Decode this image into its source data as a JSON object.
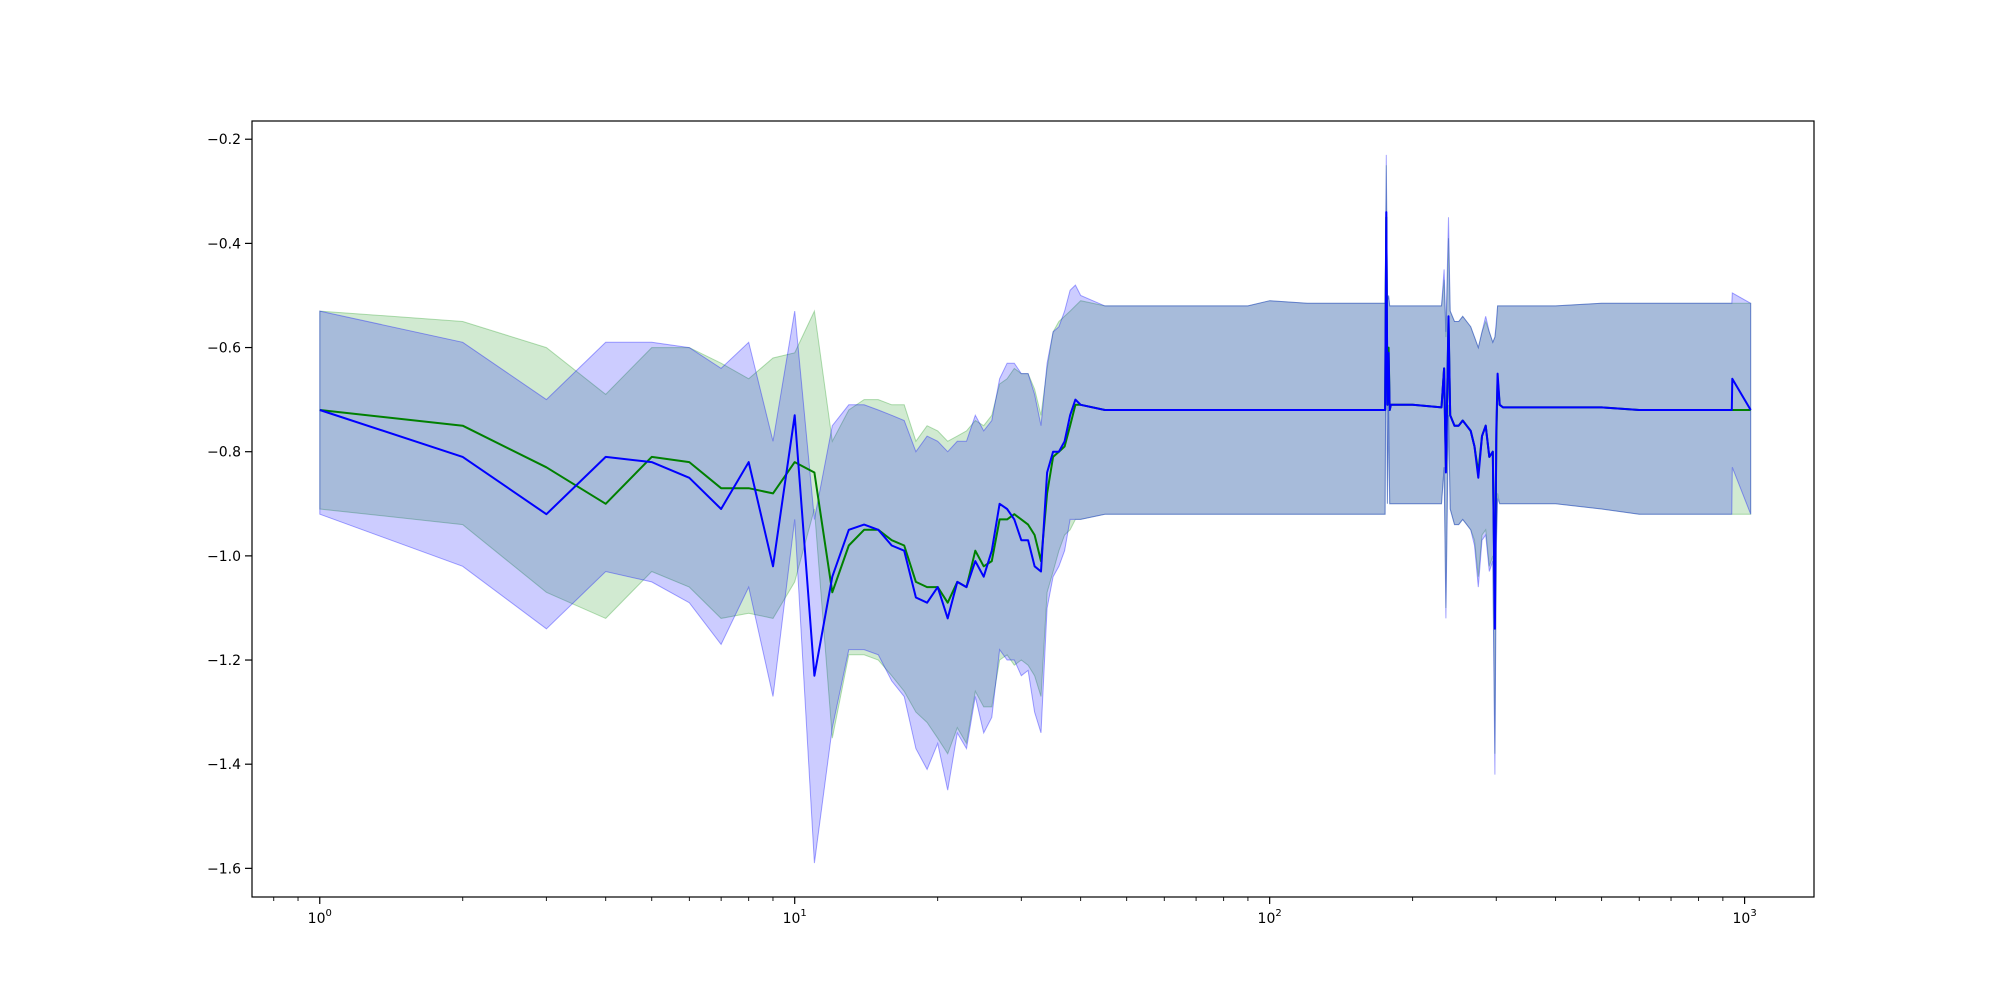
{
  "chart_data": {
    "type": "line",
    "title": "",
    "xlabel": "",
    "ylabel": "",
    "x_scale": "log",
    "xlim": [
      0.72,
      1400
    ],
    "ylim": [
      -1.655,
      -0.165
    ],
    "grid": false,
    "x_tick_values": [
      1,
      10,
      100,
      1000
    ],
    "x_tick_labels": [
      {
        "base": "10",
        "exp": "0"
      },
      {
        "base": "10",
        "exp": "1"
      },
      {
        "base": "10",
        "exp": "2"
      },
      {
        "base": "10",
        "exp": "3"
      }
    ],
    "y_ticks": [
      -1.6,
      -1.4,
      -1.2,
      -1.0,
      -0.8,
      -0.6,
      -0.4,
      -0.2
    ],
    "y_tick_labels": [
      "−1.6",
      "−1.4",
      "−1.2",
      "−1.0",
      "−0.8",
      "−0.6",
      "−0.4",
      "−0.2"
    ],
    "series": [
      {
        "color": "#008000",
        "band_color": "#2ca02c",
        "band_opacity": 0.22,
        "x": [
          1,
          2,
          3,
          4,
          5,
          6,
          7,
          8,
          9,
          10,
          11,
          12,
          13,
          14,
          15,
          16,
          17,
          18,
          19,
          20,
          21,
          22,
          23,
          24,
          25,
          26,
          27,
          28,
          29,
          30,
          31,
          32,
          33,
          34,
          35,
          36,
          37,
          38,
          39,
          40,
          45,
          50,
          60,
          70,
          80,
          90,
          100,
          120,
          150,
          175,
          176,
          177,
          178,
          179,
          180,
          185,
          200,
          230,
          233,
          235,
          238,
          240,
          245,
          250,
          255,
          260,
          265,
          270,
          275,
          280,
          285,
          290,
          295,
          298,
          300,
          302,
          305,
          310,
          350,
          400,
          500,
          600,
          700,
          800,
          900,
          940,
          942,
          1030
        ],
        "y": [
          -0.72,
          -0.75,
          -0.83,
          -0.9,
          -0.81,
          -0.82,
          -0.87,
          -0.87,
          -0.88,
          -0.82,
          -0.84,
          -1.07,
          -0.98,
          -0.95,
          -0.95,
          -0.97,
          -0.98,
          -1.05,
          -1.06,
          -1.06,
          -1.09,
          -1.05,
          -1.06,
          -0.99,
          -1.02,
          -1.01,
          -0.93,
          -0.93,
          -0.92,
          -0.93,
          -0.94,
          -0.96,
          -1.01,
          -0.88,
          -0.81,
          -0.8,
          -0.79,
          -0.75,
          -0.71,
          -0.71,
          -0.72,
          -0.72,
          -0.72,
          -0.72,
          -0.72,
          -0.72,
          -0.72,
          -0.72,
          -0.72,
          -0.72,
          -0.35,
          -0.71,
          -0.6,
          -0.72,
          -0.71,
          -0.71,
          -0.71,
          -0.715,
          -0.64,
          -0.83,
          -0.55,
          -0.73,
          -0.75,
          -0.75,
          -0.74,
          -0.75,
          -0.76,
          -0.79,
          -0.84,
          -0.77,
          -0.75,
          -0.81,
          -0.8,
          -1.12,
          -0.78,
          -0.66,
          -0.71,
          -0.715,
          -0.715,
          -0.715,
          -0.715,
          -0.72,
          -0.72,
          -0.72,
          -0.72,
          -0.72,
          -0.72,
          -0.72
        ],
        "upper": [
          -0.53,
          -0.55,
          -0.6,
          -0.69,
          -0.6,
          -0.6,
          -0.63,
          -0.66,
          -0.62,
          -0.61,
          -0.53,
          -0.78,
          -0.72,
          -0.7,
          -0.7,
          -0.71,
          -0.71,
          -0.78,
          -0.75,
          -0.76,
          -0.78,
          -0.77,
          -0.76,
          -0.74,
          -0.75,
          -0.73,
          -0.67,
          -0.66,
          -0.64,
          -0.65,
          -0.65,
          -0.68,
          -0.73,
          -0.64,
          -0.57,
          -0.55,
          -0.54,
          -0.53,
          -0.52,
          -0.51,
          -0.52,
          -0.52,
          -0.52,
          -0.52,
          -0.52,
          -0.52,
          -0.51,
          -0.515,
          -0.515,
          -0.515,
          -0.25,
          -0.51,
          -0.5,
          -0.52,
          -0.52,
          -0.52,
          -0.52,
          -0.52,
          -0.47,
          -0.58,
          -0.39,
          -0.53,
          -0.55,
          -0.55,
          -0.54,
          -0.55,
          -0.56,
          -0.58,
          -0.6,
          -0.57,
          -0.55,
          -0.57,
          -0.59,
          -0.58,
          -0.56,
          -0.52,
          -0.52,
          -0.52,
          -0.52,
          -0.52,
          -0.515,
          -0.515,
          -0.515,
          -0.515,
          -0.515,
          -0.515,
          -0.515,
          -0.515
        ],
        "lower": [
          -0.91,
          -0.94,
          -1.07,
          -1.12,
          -1.03,
          -1.06,
          -1.12,
          -1.11,
          -1.12,
          -1.05,
          -0.91,
          -1.35,
          -1.19,
          -1.19,
          -1.2,
          -1.23,
          -1.26,
          -1.3,
          -1.32,
          -1.35,
          -1.38,
          -1.33,
          -1.36,
          -1.26,
          -1.29,
          -1.29,
          -1.2,
          -1.19,
          -1.21,
          -1.2,
          -1.21,
          -1.23,
          -1.27,
          -1.07,
          -1.03,
          -0.99,
          -0.96,
          -0.95,
          -0.93,
          -0.93,
          -0.92,
          -0.92,
          -0.92,
          -0.92,
          -0.92,
          -0.92,
          -0.92,
          -0.92,
          -0.92,
          -0.92,
          -0.45,
          -0.9,
          -0.72,
          -0.9,
          -0.9,
          -0.9,
          -0.9,
          -0.9,
          -0.83,
          -1.1,
          -0.71,
          -0.91,
          -0.94,
          -0.94,
          -0.93,
          -0.94,
          -0.95,
          -0.97,
          -1.04,
          -0.96,
          -0.95,
          -1.02,
          -1.0,
          -1.38,
          -0.97,
          -0.88,
          -0.9,
          -0.9,
          -0.9,
          -0.9,
          -0.91,
          -0.92,
          -0.92,
          -0.92,
          -0.92,
          -0.92,
          -0.92,
          -0.92
        ]
      },
      {
        "color": "#0000ff",
        "band_color": "#0000ff",
        "band_opacity": 0.2,
        "x": [
          1,
          2,
          3,
          4,
          5,
          6,
          7,
          8,
          9,
          10,
          11,
          12,
          13,
          14,
          15,
          16,
          17,
          18,
          19,
          20,
          21,
          22,
          23,
          24,
          25,
          26,
          27,
          28,
          29,
          30,
          31,
          32,
          33,
          34,
          35,
          36,
          37,
          38,
          39,
          40,
          45,
          50,
          60,
          70,
          80,
          90,
          100,
          120,
          150,
          175,
          176,
          177,
          178,
          179,
          180,
          185,
          200,
          230,
          233,
          235,
          238,
          240,
          245,
          250,
          255,
          260,
          265,
          270,
          275,
          280,
          285,
          290,
          295,
          298,
          300,
          302,
          305,
          310,
          350,
          400,
          500,
          600,
          700,
          800,
          900,
          940,
          942,
          1030
        ],
        "y": [
          -0.72,
          -0.81,
          -0.92,
          -0.81,
          -0.82,
          -0.85,
          -0.91,
          -0.82,
          -1.02,
          -0.73,
          -1.23,
          -1.04,
          -0.95,
          -0.94,
          -0.95,
          -0.98,
          -0.99,
          -1.08,
          -1.09,
          -1.06,
          -1.12,
          -1.05,
          -1.06,
          -1.01,
          -1.04,
          -0.99,
          -0.9,
          -0.91,
          -0.93,
          -0.97,
          -0.97,
          -1.02,
          -1.03,
          -0.84,
          -0.8,
          -0.8,
          -0.78,
          -0.73,
          -0.7,
          -0.71,
          -0.72,
          -0.72,
          -0.72,
          -0.72,
          -0.72,
          -0.72,
          -0.72,
          -0.72,
          -0.72,
          -0.72,
          -0.34,
          -0.71,
          -0.61,
          -0.72,
          -0.71,
          -0.71,
          -0.71,
          -0.715,
          -0.64,
          -0.84,
          -0.54,
          -0.73,
          -0.75,
          -0.75,
          -0.74,
          -0.75,
          -0.76,
          -0.79,
          -0.85,
          -0.77,
          -0.75,
          -0.81,
          -0.8,
          -1.14,
          -0.76,
          -0.65,
          -0.71,
          -0.715,
          -0.715,
          -0.715,
          -0.715,
          -0.72,
          -0.72,
          -0.72,
          -0.72,
          -0.72,
          -0.66,
          -0.72
        ],
        "upper": [
          -0.53,
          -0.59,
          -0.7,
          -0.59,
          -0.59,
          -0.6,
          -0.64,
          -0.59,
          -0.78,
          -0.53,
          -0.93,
          -0.75,
          -0.71,
          -0.71,
          -0.72,
          -0.73,
          -0.74,
          -0.8,
          -0.77,
          -0.78,
          -0.8,
          -0.78,
          -0.78,
          -0.73,
          -0.76,
          -0.74,
          -0.66,
          -0.63,
          -0.63,
          -0.65,
          -0.65,
          -0.69,
          -0.75,
          -0.63,
          -0.57,
          -0.56,
          -0.53,
          -0.49,
          -0.48,
          -0.5,
          -0.52,
          -0.52,
          -0.52,
          -0.52,
          -0.52,
          -0.52,
          -0.51,
          -0.515,
          -0.515,
          -0.515,
          -0.23,
          -0.51,
          -0.5,
          -0.52,
          -0.52,
          -0.52,
          -0.52,
          -0.52,
          -0.45,
          -0.57,
          -0.35,
          -0.53,
          -0.55,
          -0.55,
          -0.54,
          -0.55,
          -0.56,
          -0.58,
          -0.6,
          -0.57,
          -0.54,
          -0.57,
          -0.59,
          -0.58,
          -0.55,
          -0.52,
          -0.52,
          -0.52,
          -0.52,
          -0.52,
          -0.515,
          -0.515,
          -0.515,
          -0.515,
          -0.515,
          -0.515,
          -0.495,
          -0.515
        ],
        "lower": [
          -0.92,
          -1.02,
          -1.14,
          -1.03,
          -1.05,
          -1.09,
          -1.17,
          -1.06,
          -1.27,
          -0.93,
          -1.59,
          -1.33,
          -1.18,
          -1.18,
          -1.19,
          -1.24,
          -1.27,
          -1.37,
          -1.41,
          -1.36,
          -1.45,
          -1.34,
          -1.37,
          -1.27,
          -1.34,
          -1.31,
          -1.18,
          -1.2,
          -1.2,
          -1.23,
          -1.22,
          -1.3,
          -1.34,
          -1.1,
          -1.04,
          -1.02,
          -0.99,
          -0.93,
          -0.93,
          -0.93,
          -0.92,
          -0.92,
          -0.92,
          -0.92,
          -0.92,
          -0.92,
          -0.92,
          -0.92,
          -0.92,
          -0.92,
          -0.43,
          -0.9,
          -0.72,
          -0.9,
          -0.9,
          -0.9,
          -0.9,
          -0.9,
          -0.83,
          -1.12,
          -0.73,
          -0.91,
          -0.94,
          -0.94,
          -0.93,
          -0.94,
          -0.95,
          -0.98,
          -1.06,
          -0.97,
          -0.96,
          -1.03,
          -1.01,
          -1.42,
          -0.99,
          -0.89,
          -0.9,
          -0.9,
          -0.9,
          -0.9,
          -0.91,
          -0.92,
          -0.92,
          -0.92,
          -0.92,
          -0.92,
          -0.83,
          -0.92
        ]
      }
    ]
  }
}
